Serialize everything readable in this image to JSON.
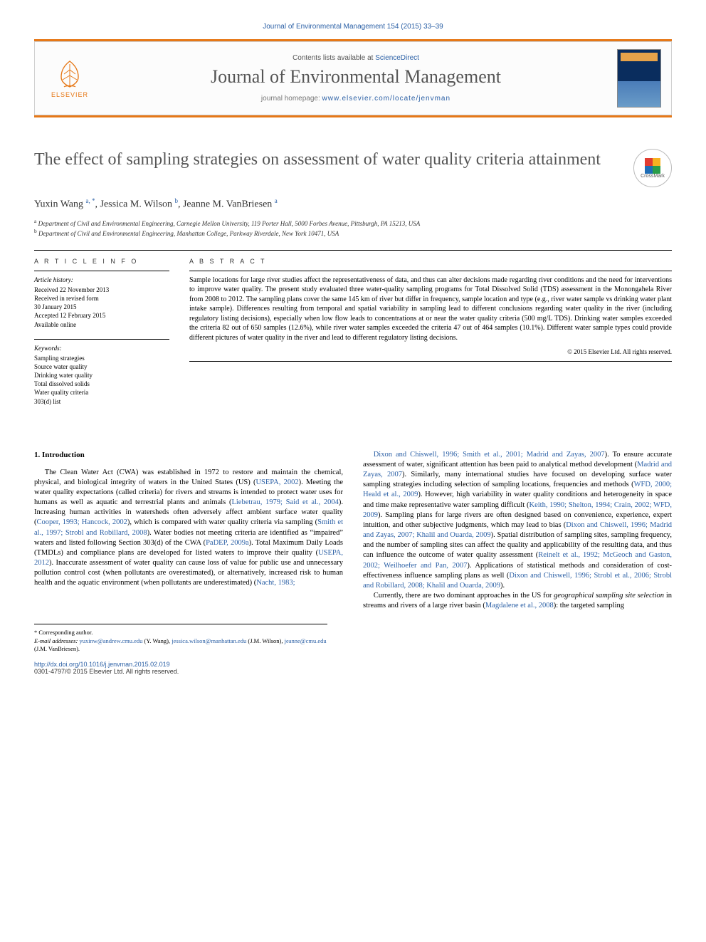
{
  "header": {
    "citation": "Journal of Environmental Management 154 (2015) 33–39",
    "contents_prefix": "Contents lists available at ",
    "contents_link": "ScienceDirect",
    "journal_name": "Journal of Environmental Management",
    "homepage_prefix": "journal homepage: ",
    "homepage_url": "www.elsevier.com/locate/jenvman",
    "publisher": "ELSEVIER"
  },
  "colors": {
    "accent_orange": "#e67817",
    "link_blue": "#2a5fa5",
    "heading_grey": "#555555",
    "text_black": "#000000",
    "rule": "#000000"
  },
  "crossmark": {
    "label": "CrossMark",
    "c1": "#e03c31",
    "c2": "#f6b221",
    "c3": "#2a9d4a",
    "c4": "#1f6db5"
  },
  "article": {
    "title": "The effect of sampling strategies on assessment of water quality criteria attainment",
    "authors_html": "Yuxin Wang <sup>a, *</sup>, Jessica M. Wilson <sup>b</sup>, Jeanne M. VanBriesen <sup>a</sup>",
    "affiliations": [
      "a Department of Civil and Environmental Engineering, Carnegie Mellon University, 119 Porter Hall, 5000 Forbes Avenue, Pittsburgh, PA 15213, USA",
      "b Department of Civil and Environmental Engineering, Manhattan College, Parkway Riverdale, New York 10471, USA"
    ]
  },
  "info": {
    "heading": "A R T I C L E   I N F O",
    "history_label": "Article history:",
    "history": [
      "Received 22 November 2013",
      "Received in revised form",
      "30 January 2015",
      "Accepted 12 February 2015",
      "Available online"
    ],
    "keywords_label": "Keywords:",
    "keywords": [
      "Sampling strategies",
      "Source water quality",
      "Drinking water quality",
      "Total dissolved solids",
      "Water quality criteria",
      "303(d) list"
    ]
  },
  "abstract": {
    "heading": "A B S T R A C T",
    "text": "Sample locations for large river studies affect the representativeness of data, and thus can alter decisions made regarding river conditions and the need for interventions to improve water quality. The present study evaluated three water-quality sampling programs for Total Dissolved Solid (TDS) assessment in the Monongahela River from 2008 to 2012. The sampling plans cover the same 145 km of river but differ in frequency, sample location and type (e.g., river water sample vs drinking water plant intake sample). Differences resulting from temporal and spatial variability in sampling lead to different conclusions regarding water quality in the river (including regulatory listing decisions), especially when low flow leads to concentrations at or near the water quality criteria (500 mg/L TDS). Drinking water samples exceeded the criteria 82 out of 650 samples (12.6%), while river water samples exceeded the criteria 47 out of 464 samples (10.1%). Different water sample types could provide different pictures of water quality in the river and lead to different regulatory listing decisions.",
    "copyright": "© 2015 Elsevier Ltd. All rights reserved."
  },
  "body": {
    "section_number": "1.",
    "section_title": "Introduction",
    "col1": "The Clean Water Act (CWA) was established in 1972 to restore and maintain the chemical, physical, and biological integrity of waters in the United States (US) (<a>USEPA, 2002</a>). Meeting the water quality expectations (called criteria) for rivers and streams is intended to protect water uses for humans as well as aquatic and terrestrial plants and animals (<a>Liebetrau, 1979; Said et al., 2004</a>). Increasing human activities in watersheds often adversely affect ambient surface water quality (<a>Cooper, 1993; Hancock, 2002</a>), which is compared with water quality criteria via sampling (<a>Smith et al., 1997; Strobl and Robillard, 2008</a>). Water bodies not meeting criteria are identified as “impaired” waters and listed following Section 303(d) of the CWA (<a>PaDEP, 2009a</a>). Total Maximum Daily Loads (TMDLs) and compliance plans are developed for listed waters to improve their quality (<a>USEPA, 2012</a>). Inaccurate assessment of water quality can cause loss of value for public use and unnecessary pollution control cost (when pollutants are overestimated), or alternatively, increased risk to human health and the aquatic environment (when pollutants are underestimated) (<a>Nacht, 1983;</a>",
    "col2": "<a>Dixon and Chiswell, 1996; Smith et al., 2001; Madrid and Zayas, 2007</a>). To ensure accurate assessment of water, significant attention has been paid to analytical method development (<a>Madrid and Zayas, 2007</a>). Similarly, many international studies have focused on developing surface water sampling strategies including selection of sampling locations, frequencies and methods (<a>WFD, 2000; Heald et al., 2009</a>). However, high variability in water quality conditions and heterogeneity in space and time make representative water sampling difficult (<a>Keith, 1990; Shelton, 1994; Crain, 2002; WFD, 2009</a>). Sampling plans for large rivers are often designed based on convenience, experience, expert intuition, and other subjective judgments, which may lead to bias (<a>Dixon and Chiswell, 1996; Madrid and Zayas, 2007; Khalil and Ouarda, 2009</a>). Spatial distribution of sampling sites, sampling frequency, and the number of sampling sites can affect the quality and applicability of the resulting data, and thus can influence the outcome of water quality assessment (<a>Reinelt et al., 1992; McGeoch and Gaston, 2002; Weilhoefer and Pan, 2007</a>). Applications of statistical methods and consideration of cost-effectiveness influence sampling plans as well (<a>Dixon and Chiswell, 1996; Strobl et al., 2006; Strobl and Robillard, 2008; Khalil and Ouarda, 2009</a>).",
    "col2_p2": "Currently, there are two dominant approaches in the US for <i>geographical sampling site selection</i> in streams and rivers of a large river basin (<a>Magdalene et al., 2008</a>): the targeted sampling"
  },
  "footnotes": {
    "corr": "* Corresponding author.",
    "email_label": "E-mail addresses:",
    "emails_html": "<a>yuxinw@andrew.cmu.edu</a> (Y. Wang), <a>jessica.wilson@manhattan.edu</a> (J.M. Wilson), <a>jeanne@cmu.edu</a> (J.M. VanBriesen)."
  },
  "footer": {
    "doi": "http://dx.doi.org/10.1016/j.jenvman.2015.02.019",
    "issn": "0301-4797/© 2015 Elsevier Ltd. All rights reserved."
  }
}
